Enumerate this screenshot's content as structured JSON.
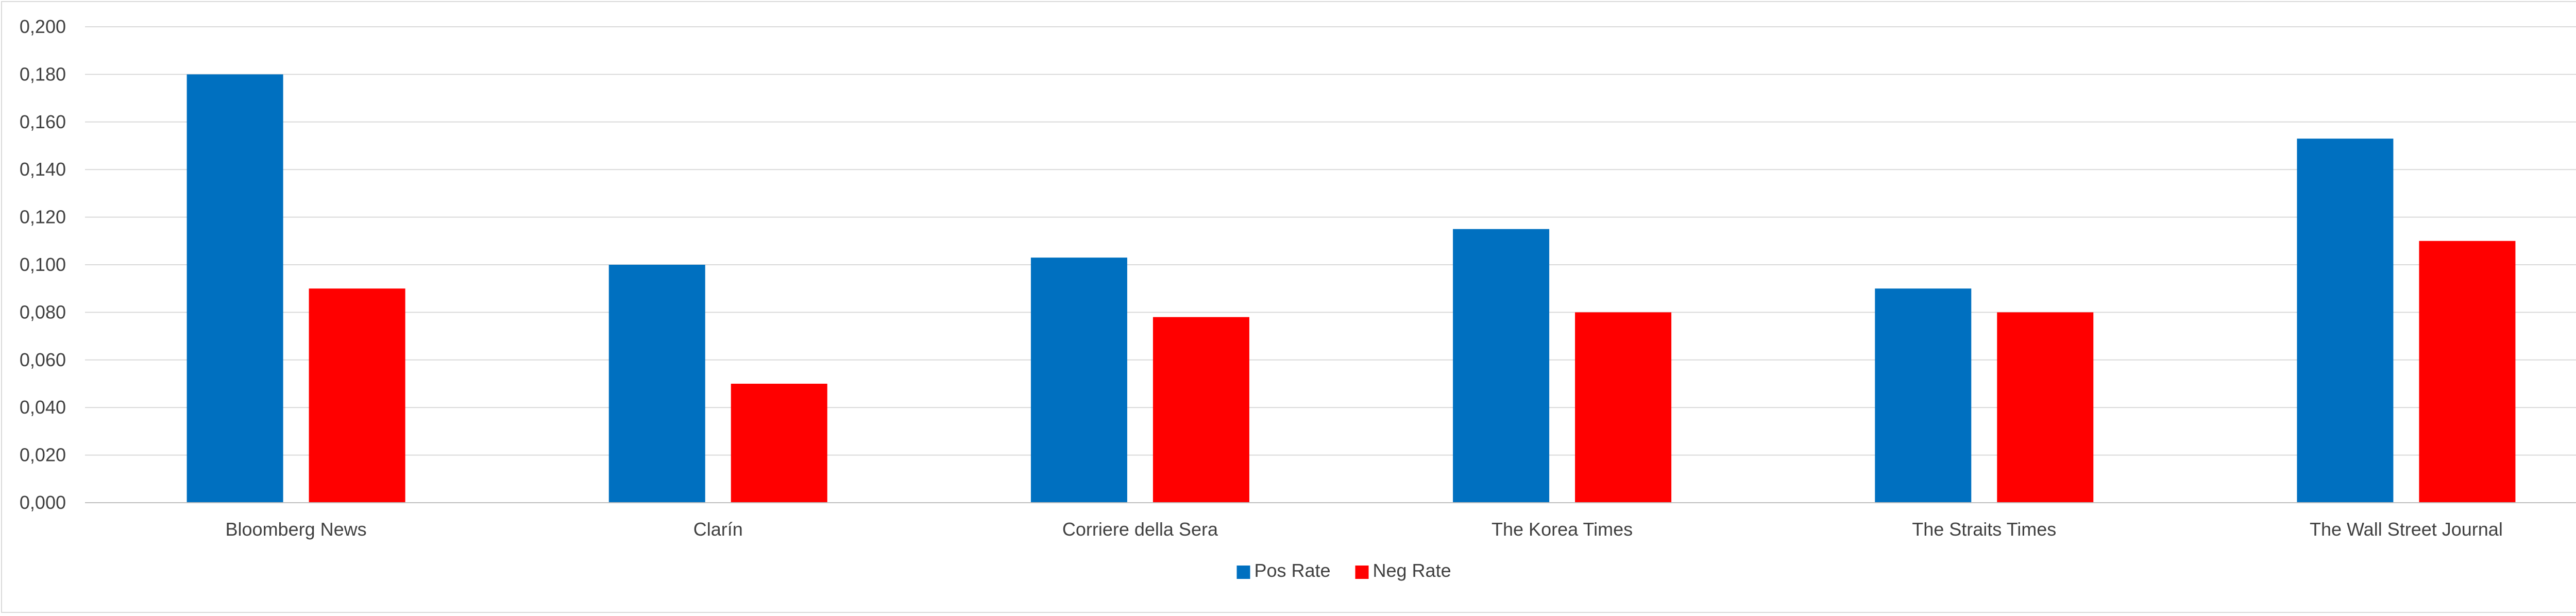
{
  "chart_data": {
    "type": "bar",
    "categories": [
      "Bloomberg News",
      "Clarín",
      "Corriere della Sera",
      "The Korea Times",
      "The Straits Times",
      "The Wall Street Journal"
    ],
    "series": [
      {
        "name": "Pos Rate",
        "color": "#0070C0",
        "values": [
          0.18,
          0.1,
          0.103,
          0.115,
          0.09,
          0.153
        ]
      },
      {
        "name": "Neg Rate",
        "color": "#FF0000",
        "values": [
          0.09,
          0.05,
          0.078,
          0.08,
          0.08,
          0.11
        ]
      }
    ],
    "ylim": [
      0,
      0.2
    ],
    "yticks": [
      0.0,
      0.02,
      0.04,
      0.06,
      0.08,
      0.1,
      0.12,
      0.14,
      0.16,
      0.18,
      0.2
    ],
    "ytick_labels": [
      "0,000",
      "0,020",
      "0,040",
      "0,060",
      "0,080",
      "0,100",
      "0,120",
      "0,140",
      "0,160",
      "0,180",
      "0,200"
    ],
    "grid": true,
    "legend_position": "bottom",
    "gridline_color": "#D9D9D9",
    "axis_color": "#BFBFBF"
  }
}
